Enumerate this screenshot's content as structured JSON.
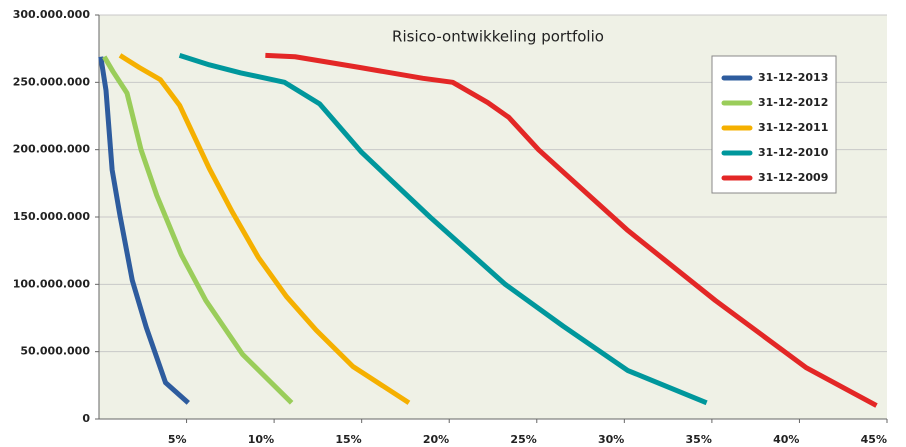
{
  "chart_data": {
    "type": "line",
    "title": "Risico-ontwikkeling portfolio",
    "xlim": [
      0,
      45
    ],
    "xticks": [
      {
        "value": 5,
        "label": "5%"
      },
      {
        "value": 10,
        "label": "10%"
      },
      {
        "value": 15,
        "label": "15%"
      },
      {
        "value": 20,
        "label": "20%"
      },
      {
        "value": 25,
        "label": "25%"
      },
      {
        "value": 30,
        "label": "30%"
      },
      {
        "value": 35,
        "label": "35%"
      },
      {
        "value": 40,
        "label": "40%"
      },
      {
        "value": 45,
        "label": "45%"
      }
    ],
    "ylim": [
      0,
      300000000
    ],
    "yticks": [
      0,
      {
        "value": 50000000,
        "label": "50.000.000"
      },
      {
        "value": 100000000,
        "label": "100.000.000"
      },
      {
        "value": 150000000,
        "label": "150.000.000"
      },
      {
        "value": 200000000,
        "label": "200.000.000"
      },
      {
        "value": 250000000,
        "label": "250.000.000"
      },
      {
        "value": 300000000,
        "label": "300.000.000"
      }
    ],
    "grid": true,
    "legend": "upper right",
    "series": [
      {
        "name": "31-12-2013",
        "color": "#2e5c9e",
        "x": [
          0.1,
          0.4,
          0.75,
          1.2,
          1.9,
          2.7,
          3.8,
          5.1
        ],
        "values": [
          269000000,
          244000000,
          185000000,
          151000000,
          103000000,
          68000000,
          27000000,
          12000000
        ]
      },
      {
        "name": "31-12-2012",
        "color": "#9acd5a",
        "x": [
          0.3,
          0.8,
          1.6,
          2.4,
          3.3,
          4.7,
          6.1,
          8.2,
          11.0
        ],
        "values": [
          269000000,
          258000000,
          242000000,
          200000000,
          166000000,
          122000000,
          88000000,
          48000000,
          12000000
        ]
      },
      {
        "name": "31-12-2011",
        "color": "#f5b000",
        "x": [
          1.2,
          2.3,
          3.5,
          4.6,
          6.3,
          7.6,
          9.1,
          10.7,
          12.4,
          14.5,
          17.7
        ],
        "values": [
          270000000,
          261000000,
          252000000,
          233000000,
          186000000,
          154000000,
          120000000,
          91000000,
          66000000,
          39000000,
          12000000
        ]
      },
      {
        "name": "31-12-2010",
        "color": "#00979c",
        "x": [
          4.6,
          6.3,
          8.1,
          10.6,
          12.6,
          15.0,
          18.9,
          23.2,
          26.5,
          30.2,
          34.7
        ],
        "values": [
          270000000,
          263000000,
          257000000,
          250000000,
          234000000,
          198000000,
          150000000,
          100000000,
          69000000,
          36000000,
          12000000
        ]
      },
      {
        "name": "31-12-2009",
        "color": "#e32726",
        "x": [
          9.5,
          11.2,
          14.9,
          18.5,
          20.2,
          22.2,
          23.4,
          25.1,
          30.2,
          35.2,
          40.4,
          44.4
        ],
        "values": [
          270000000,
          269000000,
          261000000,
          253000000,
          250000000,
          235000000,
          224000000,
          200000000,
          140000000,
          88000000,
          38000000,
          10000000
        ]
      }
    ]
  }
}
